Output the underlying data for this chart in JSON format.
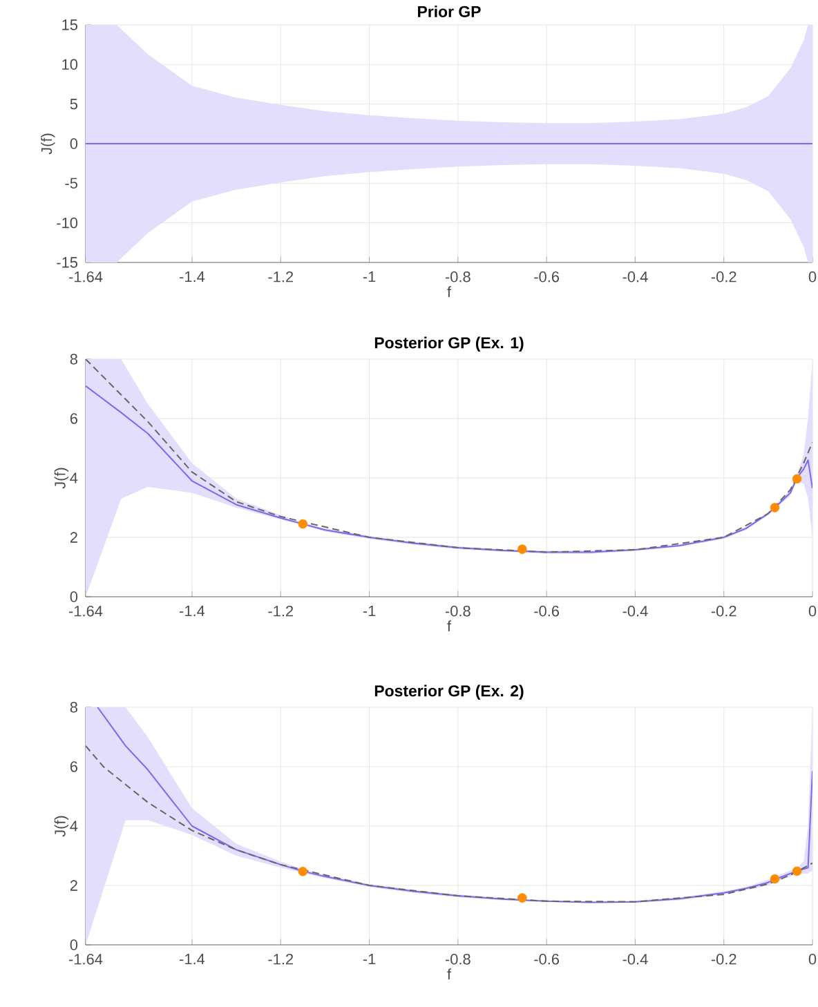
{
  "chart_data": [
    {
      "type": "line",
      "title": "Prior GP",
      "xlabel": "f",
      "ylabel": "J(f)",
      "xlim": [
        -1.64,
        0
      ],
      "ylim": [
        -15,
        15
      ],
      "xticks": [
        -1.64,
        -1.4,
        -1.2,
        -1,
        -0.8,
        -0.6,
        -0.4,
        -0.2,
        0
      ],
      "yticks": [
        -15,
        -10,
        -5,
        0,
        5,
        10,
        15
      ],
      "grid": true,
      "series": [
        {
          "type": "line",
          "color": "#7b68ee",
          "x": [
            -1.64,
            -1.57,
            -1.5,
            -1.4,
            -1.3,
            -1.2,
            -1.1,
            -1.0,
            -0.9,
            -0.8,
            -0.7,
            -0.6,
            -0.5,
            -0.4,
            -0.3,
            -0.2,
            -0.15,
            -0.1,
            -0.05,
            -0.02,
            -0.01,
            0
          ],
          "values": [
            0,
            0,
            0,
            0,
            0,
            0,
            0,
            0,
            0,
            0,
            0,
            0,
            0,
            0,
            0,
            0,
            0,
            0,
            0,
            0,
            0,
            0
          ],
          "upper": [
            15,
            15,
            11.3,
            7.3,
            5.8,
            4.9,
            4.1,
            3.6,
            3.2,
            2.9,
            2.7,
            2.6,
            2.6,
            2.8,
            3.1,
            3.8,
            4.6,
            6.0,
            9.5,
            13,
            15,
            15
          ],
          "lower": [
            -15,
            -15,
            -11.3,
            -7.3,
            -5.8,
            -4.9,
            -4.1,
            -3.6,
            -3.2,
            -2.9,
            -2.7,
            -2.6,
            -2.6,
            -2.8,
            -3.1,
            -3.8,
            -4.6,
            -6.0,
            -9.5,
            -13,
            -15,
            -15
          ]
        }
      ]
    },
    {
      "type": "line",
      "title": "Posterior GP (Ex. 1)",
      "xlabel": "f",
      "ylabel": "J(f)",
      "xlim": [
        -1.64,
        0
      ],
      "ylim": [
        0,
        8
      ],
      "xticks": [
        -1.64,
        -1.4,
        -1.2,
        -1,
        -0.8,
        -0.6,
        -0.4,
        -0.2,
        0
      ],
      "yticks": [
        0,
        2,
        4,
        6,
        8
      ],
      "grid": true,
      "series": [
        {
          "type": "line",
          "color": "#7b68ee",
          "x": [
            -1.64,
            -1.56,
            -1.5,
            -1.4,
            -1.3,
            -1.2,
            -1.15,
            -1.1,
            -1.0,
            -0.9,
            -0.8,
            -0.7,
            -0.6,
            -0.5,
            -0.4,
            -0.3,
            -0.2,
            -0.15,
            -0.1,
            -0.085,
            -0.05,
            -0.035,
            -0.02,
            -0.01,
            0
          ],
          "values": [
            7.1,
            6.2,
            5.5,
            3.9,
            3.1,
            2.65,
            2.45,
            2.25,
            2.0,
            1.8,
            1.65,
            1.56,
            1.5,
            1.5,
            1.58,
            1.72,
            2.0,
            2.3,
            2.8,
            3.0,
            3.5,
            4.0,
            4.3,
            4.6,
            3.65
          ],
          "upper": [
            8,
            8,
            6.5,
            4.5,
            3.3,
            2.75,
            2.5,
            2.3,
            2.05,
            1.85,
            1.7,
            1.6,
            1.55,
            1.55,
            1.62,
            1.76,
            2.05,
            2.35,
            2.85,
            3.05,
            3.6,
            4.1,
            4.8,
            6,
            8
          ],
          "lower": [
            0,
            3.3,
            3.7,
            3.5,
            3.0,
            2.6,
            2.4,
            2.2,
            1.95,
            1.75,
            1.6,
            1.52,
            1.45,
            1.45,
            1.54,
            1.68,
            1.95,
            2.25,
            2.75,
            2.95,
            3.4,
            3.9,
            3.8,
            3.3,
            2.0
          ]
        },
        {
          "type": "line",
          "color": "#666666",
          "line_style": "dashed",
          "x": [
            -1.64,
            -1.6,
            -1.5,
            -1.4,
            -1.3,
            -1.2,
            -1.0,
            -0.8,
            -0.6,
            -0.4,
            -0.2,
            -0.1,
            -0.05,
            -0.02,
            0
          ],
          "values": [
            8.0,
            7.4,
            5.9,
            4.2,
            3.2,
            2.7,
            2.0,
            1.65,
            1.5,
            1.58,
            2.0,
            2.8,
            3.6,
            4.5,
            5.2
          ]
        },
        {
          "type": "scatter",
          "color": "#ff8c00",
          "x": [
            -1.15,
            -0.655,
            -0.085,
            -0.035
          ],
          "values": [
            2.45,
            1.6,
            3.0,
            3.97
          ]
        }
      ]
    },
    {
      "type": "line",
      "title": "Posterior GP (Ex. 2)",
      "xlabel": "f",
      "ylabel": "J(f)",
      "xlim": [
        -1.64,
        0
      ],
      "ylim": [
        0,
        8
      ],
      "xticks": [
        -1.64,
        -1.4,
        -1.2,
        -1,
        -0.8,
        -0.6,
        -0.4,
        -0.2,
        0
      ],
      "yticks": [
        0,
        2,
        4,
        6,
        8
      ],
      "grid": true,
      "series": [
        {
          "type": "line",
          "color": "#7b68ee",
          "x": [
            -1.64,
            -1.613,
            -1.55,
            -1.5,
            -1.4,
            -1.3,
            -1.2,
            -1.15,
            -1.1,
            -1.0,
            -0.9,
            -0.8,
            -0.7,
            -0.6,
            -0.5,
            -0.4,
            -0.3,
            -0.2,
            -0.15,
            -0.1,
            -0.085,
            -0.05,
            -0.035,
            -0.02,
            -0.01,
            0
          ],
          "values": [
            null,
            8,
            6.7,
            5.9,
            4.0,
            3.2,
            2.7,
            2.48,
            2.3,
            2.0,
            1.8,
            1.65,
            1.54,
            1.47,
            1.43,
            1.45,
            1.55,
            1.75,
            1.9,
            2.1,
            2.2,
            2.4,
            2.48,
            2.55,
            2.6,
            5.85
          ],
          "upper": [
            8,
            null,
            8,
            7.0,
            4.6,
            3.4,
            2.8,
            2.55,
            2.35,
            2.05,
            1.85,
            1.7,
            1.58,
            1.5,
            1.46,
            1.49,
            1.6,
            1.8,
            1.95,
            2.2,
            2.3,
            2.5,
            2.6,
            2.8,
            4,
            8
          ],
          "lower": [
            0,
            null,
            4.2,
            4.2,
            3.7,
            3.0,
            2.6,
            2.42,
            2.25,
            1.95,
            1.75,
            1.6,
            1.5,
            1.44,
            1.4,
            1.42,
            1.5,
            1.7,
            1.85,
            2.0,
            2.1,
            2.3,
            2.38,
            2.4,
            2.4,
            2.5
          ]
        },
        {
          "type": "line",
          "color": "#666666",
          "line_style": "dashed",
          "x": [
            -1.64,
            -1.6,
            -1.5,
            -1.4,
            -1.3,
            -1.2,
            -1.0,
            -0.8,
            -0.6,
            -0.4,
            -0.2,
            -0.1,
            -0.05,
            0
          ],
          "values": [
            6.7,
            6.0,
            4.8,
            3.85,
            3.2,
            2.7,
            2.0,
            1.65,
            1.47,
            1.45,
            1.7,
            2.05,
            2.35,
            2.75
          ]
        },
        {
          "type": "scatter",
          "color": "#ff8c00",
          "x": [
            -1.15,
            -0.655,
            -0.085,
            -0.035
          ],
          "values": [
            2.47,
            1.58,
            2.22,
            2.48
          ]
        }
      ]
    }
  ]
}
